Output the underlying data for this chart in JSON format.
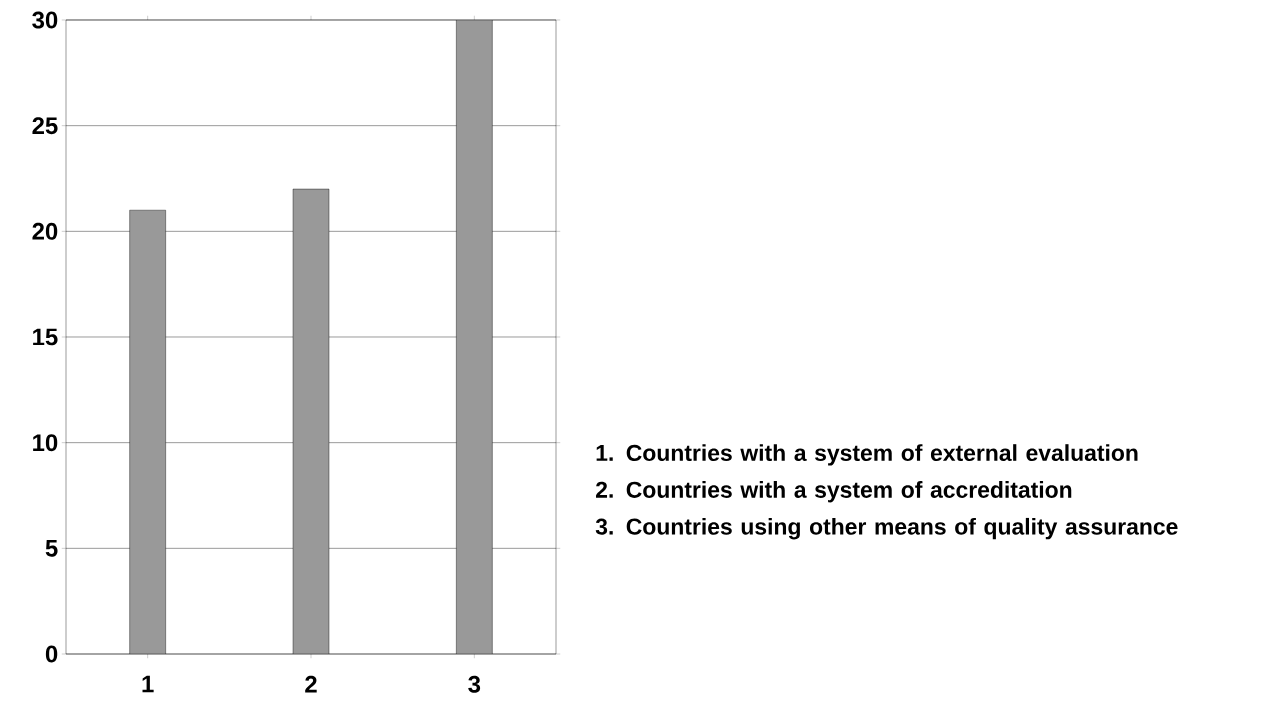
{
  "chart_data": {
    "type": "bar",
    "categories": [
      "1",
      "2",
      "3"
    ],
    "values": [
      21,
      22,
      30
    ],
    "color": "#999999",
    "ylim": [
      0,
      30
    ],
    "yticks": [
      0,
      5,
      10,
      15,
      20,
      25,
      30
    ],
    "grid": "y",
    "annotations": [
      "1. Countries with a system of external evaluation",
      "2. Countries with a system of accreditation",
      "3. Countries using other means of quality assurance"
    ]
  }
}
